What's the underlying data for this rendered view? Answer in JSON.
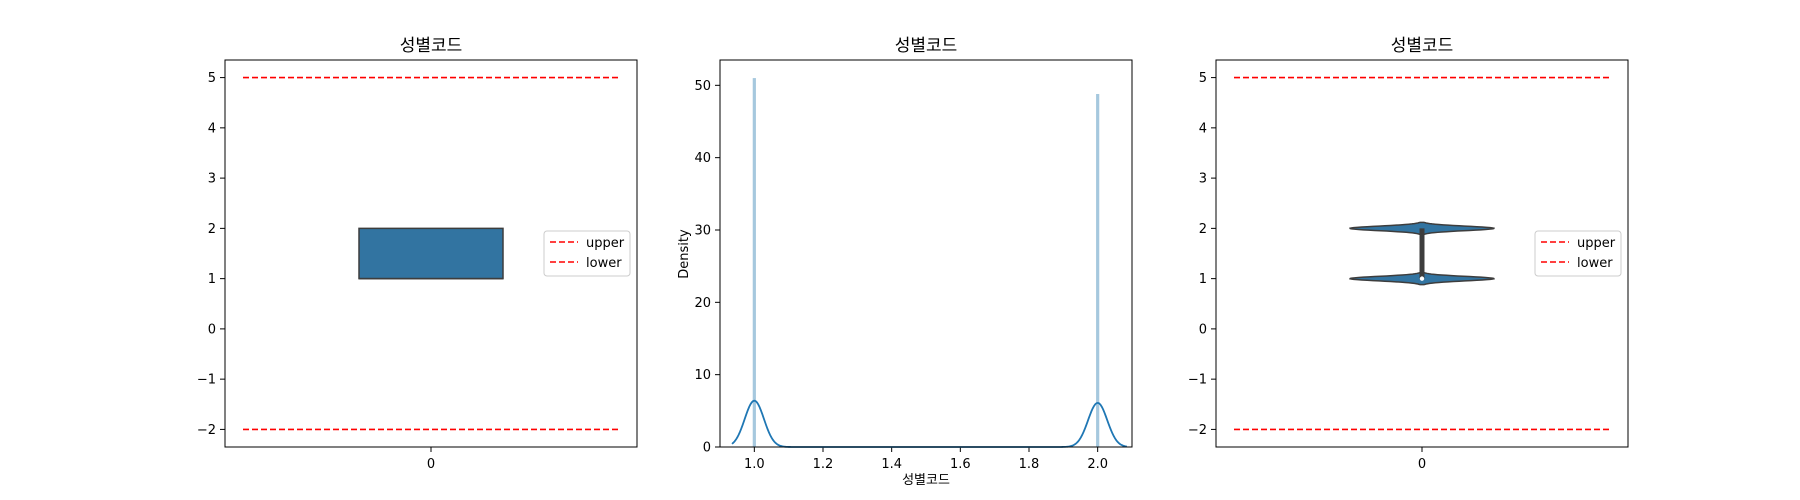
{
  "chart_data": [
    {
      "type": "box",
      "title": "성별코드",
      "xlabel": "",
      "ylabel": "",
      "x_ticks": [
        "0"
      ],
      "y_ticks": [
        "5",
        "4",
        "3",
        "2",
        "1",
        "0",
        "−1",
        "−2"
      ],
      "ylim": [
        -2.35,
        5.35
      ],
      "box": {
        "q1": 1,
        "q3": 2,
        "median": 1,
        "whisker_low": 1,
        "whisker_high": 2,
        "color": "#3274a1"
      },
      "hlines": [
        {
          "name": "upper",
          "y": 5,
          "color": "#ff0000",
          "style": "dashed"
        },
        {
          "name": "lower",
          "y": -2,
          "color": "#ff0000",
          "style": "dashed"
        }
      ],
      "legend": {
        "placement": "right",
        "entries": [
          "upper",
          "lower"
        ]
      }
    },
    {
      "type": "histogram+kde",
      "title": "성별코드",
      "xlabel": "성별코드",
      "ylabel": "Density",
      "x_ticks": [
        "1.0",
        "1.2",
        "1.4",
        "1.6",
        "1.8",
        "2.0"
      ],
      "y_ticks": [
        "0",
        "10",
        "20",
        "30",
        "40",
        "50"
      ],
      "xlim": [
        0.9,
        2.1
      ],
      "ylim": [
        0,
        53.5
      ],
      "bars": [
        {
          "x": 1.0,
          "density": 51.0
        },
        {
          "x": 2.0,
          "density": 48.8
        }
      ],
      "bar_color": "#a6c8de",
      "kde_color": "#1f77b4",
      "kde_peaks": [
        {
          "x": 1.0,
          "y": 6.4
        },
        {
          "x": 2.0,
          "y": 6.1
        }
      ]
    },
    {
      "type": "violin",
      "title": "성별코드",
      "xlabel": "",
      "ylabel": "",
      "x_ticks": [
        "0"
      ],
      "y_ticks": [
        "5",
        "4",
        "3",
        "2",
        "1",
        "0",
        "−1",
        "−2"
      ],
      "ylim": [
        -2.35,
        5.35
      ],
      "violin": {
        "peaks": [
          1,
          2
        ],
        "q1": 1,
        "q3": 2,
        "median": 1,
        "color": "#3274a1"
      },
      "hlines": [
        {
          "name": "upper",
          "y": 5,
          "color": "#ff0000",
          "style": "dashed"
        },
        {
          "name": "lower",
          "y": -2,
          "color": "#ff0000",
          "style": "dashed"
        }
      ],
      "legend": {
        "placement": "right",
        "entries": [
          "upper",
          "lower"
        ]
      }
    }
  ]
}
